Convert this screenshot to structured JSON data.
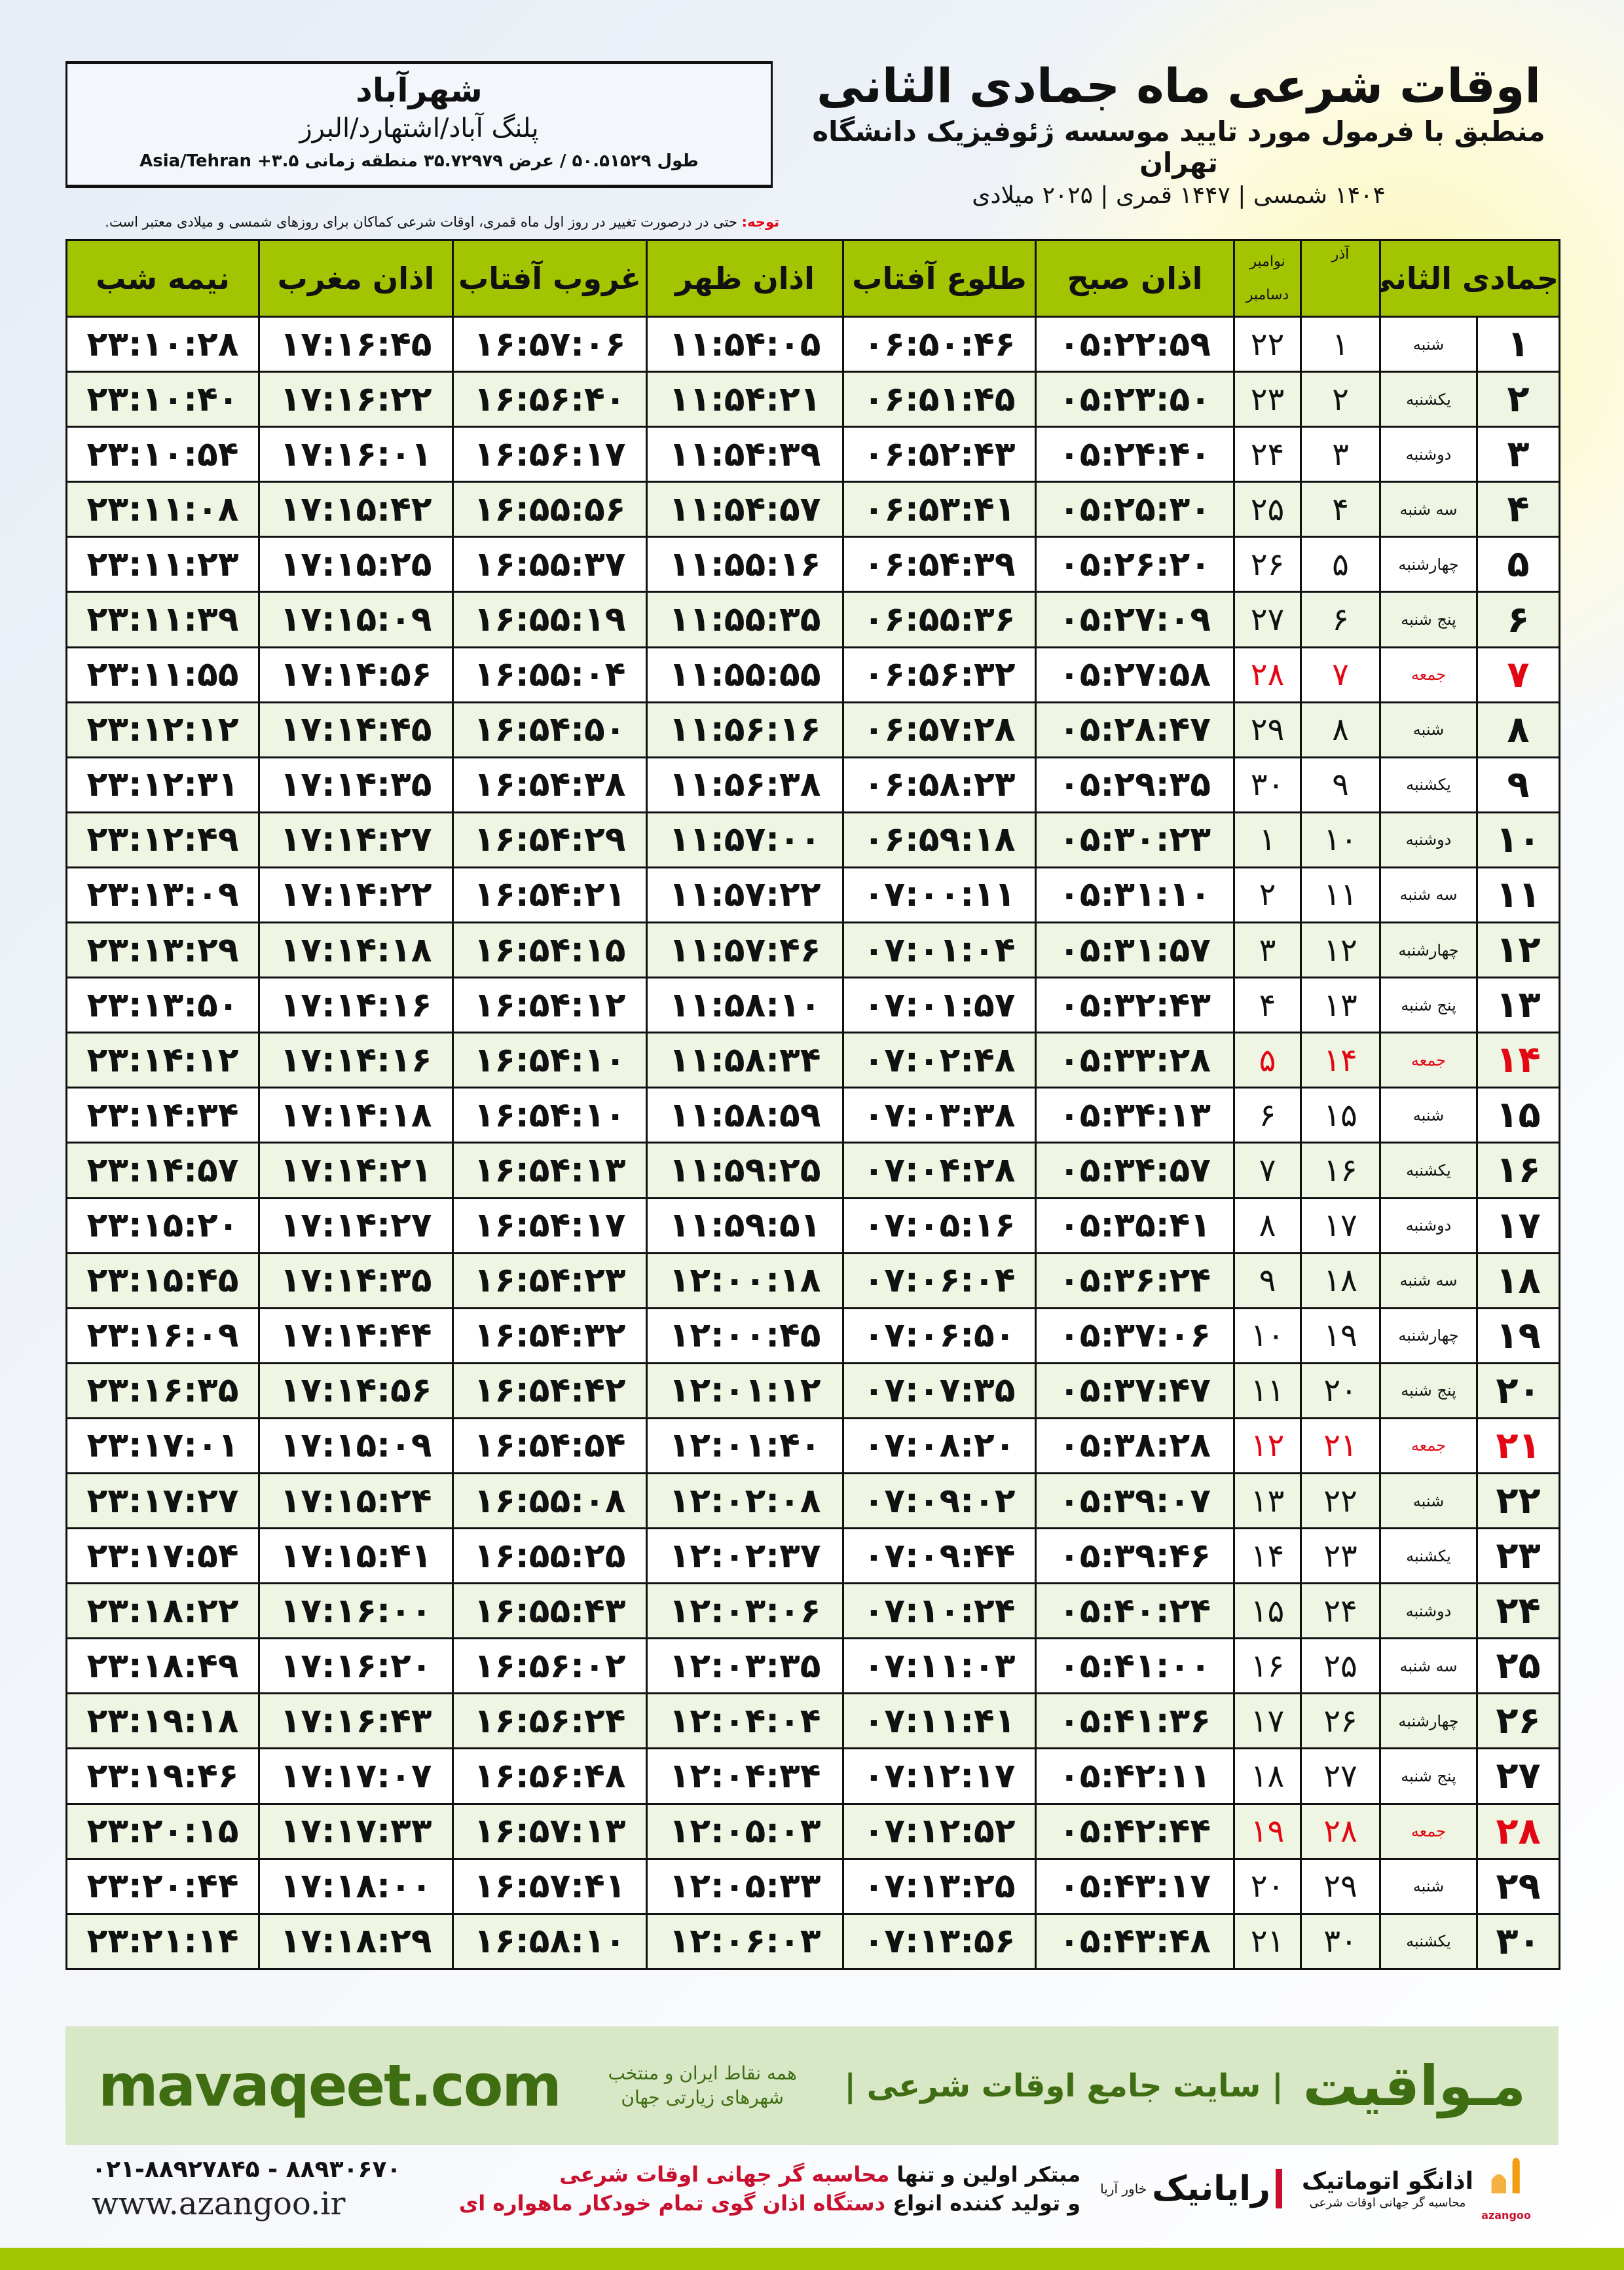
{
  "location": {
    "city": "شهرآباد",
    "region": "پلنگ آباد/اشتهارد/البرز",
    "coords": "طول ۵۰.۵۱۵۲۹ / عرض ۳۵.۷۲۹۷۹ منطقه زمانی ۳.۵+ Asia/Tehran"
  },
  "header": {
    "title": "اوقات شرعی ماه جمادی الثانی",
    "subtitle": "منطبق با فرمول مورد تایید موسسه ژئوفیزیک دانشگاه تهران",
    "dates": "۱۴۰۴ شمسی | ۱۴۴۷ قمری | ۲۰۲۵ میلادی"
  },
  "note": {
    "label": "توجه:",
    "text": " حتی در درصورت تغییر در روز اول ماه قمری، اوقات شرعی کماکان برای روزهای شمسی و میلادی معتبر است."
  },
  "table": {
    "columns": {
      "hijri": "جمادی الثانی",
      "azar": "آذر",
      "nov": "نوامبر",
      "dec": "دسامبر",
      "sobh": "اذان صبح",
      "tolu": "طلوع آفتاب",
      "zohr": "اذان ظهر",
      "ghorub": "غروب آفتاب",
      "maghreb": "اذان مغرب",
      "nime": "نیمه شب"
    },
    "rows": [
      [
        "۱",
        "شنبه",
        "۱",
        "۲۲",
        "۰۵:۲۲:۵۹",
        "۰۶:۵۰:۴۶",
        "۱۱:۵۴:۰۵",
        "۱۶:۵۷:۰۶",
        "۱۷:۱۶:۴۵",
        "۲۳:۱۰:۲۸"
      ],
      [
        "۲",
        "یکشنبه",
        "۲",
        "۲۳",
        "۰۵:۲۳:۵۰",
        "۰۶:۵۱:۴۵",
        "۱۱:۵۴:۲۱",
        "۱۶:۵۶:۴۰",
        "۱۷:۱۶:۲۲",
        "۲۳:۱۰:۴۰"
      ],
      [
        "۳",
        "دوشنبه",
        "۳",
        "۲۴",
        "۰۵:۲۴:۴۰",
        "۰۶:۵۲:۴۳",
        "۱۱:۵۴:۳۹",
        "۱۶:۵۶:۱۷",
        "۱۷:۱۶:۰۱",
        "۲۳:۱۰:۵۴"
      ],
      [
        "۴",
        "سه شنبه",
        "۴",
        "۲۵",
        "۰۵:۲۵:۳۰",
        "۰۶:۵۳:۴۱",
        "۱۱:۵۴:۵۷",
        "۱۶:۵۵:۵۶",
        "۱۷:۱۵:۴۲",
        "۲۳:۱۱:۰۸"
      ],
      [
        "۵",
        "چهارشنبه",
        "۵",
        "۲۶",
        "۰۵:۲۶:۲۰",
        "۰۶:۵۴:۳۹",
        "۱۱:۵۵:۱۶",
        "۱۶:۵۵:۳۷",
        "۱۷:۱۵:۲۵",
        "۲۳:۱۱:۲۳"
      ],
      [
        "۶",
        "پنج شنبه",
        "۶",
        "۲۷",
        "۰۵:۲۷:۰۹",
        "۰۶:۵۵:۳۶",
        "۱۱:۵۵:۳۵",
        "۱۶:۵۵:۱۹",
        "۱۷:۱۵:۰۹",
        "۲۳:۱۱:۳۹"
      ],
      [
        "۷",
        "جمعه",
        "۷",
        "۲۸",
        "۰۵:۲۷:۵۸",
        "۰۶:۵۶:۳۲",
        "۱۱:۵۵:۵۵",
        "۱۶:۵۵:۰۴",
        "۱۷:۱۴:۵۶",
        "۲۳:۱۱:۵۵"
      ],
      [
        "۸",
        "شنبه",
        "۸",
        "۲۹",
        "۰۵:۲۸:۴۷",
        "۰۶:۵۷:۲۸",
        "۱۱:۵۶:۱۶",
        "۱۶:۵۴:۵۰",
        "۱۷:۱۴:۴۵",
        "۲۳:۱۲:۱۲"
      ],
      [
        "۹",
        "یکشنبه",
        "۹",
        "۳۰",
        "۰۵:۲۹:۳۵",
        "۰۶:۵۸:۲۳",
        "۱۱:۵۶:۳۸",
        "۱۶:۵۴:۳۸",
        "۱۷:۱۴:۳۵",
        "۲۳:۱۲:۳۱"
      ],
      [
        "۱۰",
        "دوشنبه",
        "۱۰",
        "۱",
        "۰۵:۳۰:۲۳",
        "۰۶:۵۹:۱۸",
        "۱۱:۵۷:۰۰",
        "۱۶:۵۴:۲۹",
        "۱۷:۱۴:۲۷",
        "۲۳:۱۲:۴۹"
      ],
      [
        "۱۱",
        "سه شنبه",
        "۱۱",
        "۲",
        "۰۵:۳۱:۱۰",
        "۰۷:۰۰:۱۱",
        "۱۱:۵۷:۲۲",
        "۱۶:۵۴:۲۱",
        "۱۷:۱۴:۲۲",
        "۲۳:۱۳:۰۹"
      ],
      [
        "۱۲",
        "چهارشنبه",
        "۱۲",
        "۳",
        "۰۵:۳۱:۵۷",
        "۰۷:۰۱:۰۴",
        "۱۱:۵۷:۴۶",
        "۱۶:۵۴:۱۵",
        "۱۷:۱۴:۱۸",
        "۲۳:۱۳:۲۹"
      ],
      [
        "۱۳",
        "پنج شنبه",
        "۱۳",
        "۴",
        "۰۵:۳۲:۴۳",
        "۰۷:۰۱:۵۷",
        "۱۱:۵۸:۱۰",
        "۱۶:۵۴:۱۲",
        "۱۷:۱۴:۱۶",
        "۲۳:۱۳:۵۰"
      ],
      [
        "۱۴",
        "جمعه",
        "۱۴",
        "۵",
        "۰۵:۳۳:۲۸",
        "۰۷:۰۲:۴۸",
        "۱۱:۵۸:۳۴",
        "۱۶:۵۴:۱۰",
        "۱۷:۱۴:۱۶",
        "۲۳:۱۴:۱۲"
      ],
      [
        "۱۵",
        "شنبه",
        "۱۵",
        "۶",
        "۰۵:۳۴:۱۳",
        "۰۷:۰۳:۳۸",
        "۱۱:۵۸:۵۹",
        "۱۶:۵۴:۱۰",
        "۱۷:۱۴:۱۸",
        "۲۳:۱۴:۳۴"
      ],
      [
        "۱۶",
        "یکشنبه",
        "۱۶",
        "۷",
        "۰۵:۳۴:۵۷",
        "۰۷:۰۴:۲۸",
        "۱۱:۵۹:۲۵",
        "۱۶:۵۴:۱۳",
        "۱۷:۱۴:۲۱",
        "۲۳:۱۴:۵۷"
      ],
      [
        "۱۷",
        "دوشنبه",
        "۱۷",
        "۸",
        "۰۵:۳۵:۴۱",
        "۰۷:۰۵:۱۶",
        "۱۱:۵۹:۵۱",
        "۱۶:۵۴:۱۷",
        "۱۷:۱۴:۲۷",
        "۲۳:۱۵:۲۰"
      ],
      [
        "۱۸",
        "سه شنبه",
        "۱۸",
        "۹",
        "۰۵:۳۶:۲۴",
        "۰۷:۰۶:۰۴",
        "۱۲:۰۰:۱۸",
        "۱۶:۵۴:۲۳",
        "۱۷:۱۴:۳۵",
        "۲۳:۱۵:۴۵"
      ],
      [
        "۱۹",
        "چهارشنبه",
        "۱۹",
        "۱۰",
        "۰۵:۳۷:۰۶",
        "۰۷:۰۶:۵۰",
        "۱۲:۰۰:۴۵",
        "۱۶:۵۴:۳۲",
        "۱۷:۱۴:۴۴",
        "۲۳:۱۶:۰۹"
      ],
      [
        "۲۰",
        "پنج شنبه",
        "۲۰",
        "۱۱",
        "۰۵:۳۷:۴۷",
        "۰۷:۰۷:۳۵",
        "۱۲:۰۱:۱۲",
        "۱۶:۵۴:۴۲",
        "۱۷:۱۴:۵۶",
        "۲۳:۱۶:۳۵"
      ],
      [
        "۲۱",
        "جمعه",
        "۲۱",
        "۱۲",
        "۰۵:۳۸:۲۸",
        "۰۷:۰۸:۲۰",
        "۱۲:۰۱:۴۰",
        "۱۶:۵۴:۵۴",
        "۱۷:۱۵:۰۹",
        "۲۳:۱۷:۰۱"
      ],
      [
        "۲۲",
        "شنبه",
        "۲۲",
        "۱۳",
        "۰۵:۳۹:۰۷",
        "۰۷:۰۹:۰۲",
        "۱۲:۰۲:۰۸",
        "۱۶:۵۵:۰۸",
        "۱۷:۱۵:۲۴",
        "۲۳:۱۷:۲۷"
      ],
      [
        "۲۳",
        "یکشنبه",
        "۲۳",
        "۱۴",
        "۰۵:۳۹:۴۶",
        "۰۷:۰۹:۴۴",
        "۱۲:۰۲:۳۷",
        "۱۶:۵۵:۲۵",
        "۱۷:۱۵:۴۱",
        "۲۳:۱۷:۵۴"
      ],
      [
        "۲۴",
        "دوشنبه",
        "۲۴",
        "۱۵",
        "۰۵:۴۰:۲۴",
        "۰۷:۱۰:۲۴",
        "۱۲:۰۳:۰۶",
        "۱۶:۵۵:۴۳",
        "۱۷:۱۶:۰۰",
        "۲۳:۱۸:۲۲"
      ],
      [
        "۲۵",
        "سه شنبه",
        "۲۵",
        "۱۶",
        "۰۵:۴۱:۰۰",
        "۰۷:۱۱:۰۳",
        "۱۲:۰۳:۳۵",
        "۱۶:۵۶:۰۲",
        "۱۷:۱۶:۲۰",
        "۲۳:۱۸:۴۹"
      ],
      [
        "۲۶",
        "چهارشنبه",
        "۲۶",
        "۱۷",
        "۰۵:۴۱:۳۶",
        "۰۷:۱۱:۴۱",
        "۱۲:۰۴:۰۴",
        "۱۶:۵۶:۲۴",
        "۱۷:۱۶:۴۳",
        "۲۳:۱۹:۱۸"
      ],
      [
        "۲۷",
        "پنج شنبه",
        "۲۷",
        "۱۸",
        "۰۵:۴۲:۱۱",
        "۰۷:۱۲:۱۷",
        "۱۲:۰۴:۳۴",
        "۱۶:۵۶:۴۸",
        "۱۷:۱۷:۰۷",
        "۲۳:۱۹:۴۶"
      ],
      [
        "۲۸",
        "جمعه",
        "۲۸",
        "۱۹",
        "۰۵:۴۲:۴۴",
        "۰۷:۱۲:۵۲",
        "۱۲:۰۵:۰۳",
        "۱۶:۵۷:۱۳",
        "۱۷:۱۷:۳۳",
        "۲۳:۲۰:۱۵"
      ],
      [
        "۲۹",
        "شنبه",
        "۲۹",
        "۲۰",
        "۰۵:۴۳:۱۷",
        "۰۷:۱۳:۲۵",
        "۱۲:۰۵:۳۳",
        "۱۶:۵۷:۴۱",
        "۱۷:۱۸:۰۰",
        "۲۳:۲۰:۴۴"
      ],
      [
        "۳۰",
        "یکشنبه",
        "۳۰",
        "۲۱",
        "۰۵:۴۳:۴۸",
        "۰۷:۱۳:۵۶",
        "۱۲:۰۶:۰۳",
        "۱۶:۵۸:۱۰",
        "۱۷:۱۸:۲۹",
        "۲۳:۲۱:۱۴"
      ]
    ],
    "holiday_weekday": "جمعه"
  },
  "banner": {
    "brand": "مـواقیت",
    "tagline": "| سایت جامع اوقات شرعی |",
    "tagline_small": "همه نقاط ایران و منتخب شهرهای زیارتی جهان",
    "site": "mavaqeet.com"
  },
  "footer": {
    "phone": "۰۲۱-۸۸۹۲۷۸۴۵ - ۸۸۹۳۰۶۷۰",
    "web": "www.azangoo.ir",
    "adv_line1_a": "مبتکر اولین و تنها ",
    "adv_line1_b": "محاسبه گر جهانی اوقات شرعی",
    "adv_line2_a": "و تولید کننده انواع ",
    "adv_line2_b": "دستگاه اذان گوی تمام خودکار ماهواره ای",
    "logo1": "رایانیک",
    "logo1_sub": "خاور آریا",
    "logo2": "اذانگو اتوماتیک",
    "logo2_sub": "محاسبه گر جهانی اوقات شرعی",
    "logo2_latin": "azangoo"
  },
  "colors": {
    "header_green": "#a3c400",
    "friday_red": "#e30613",
    "banner_bg": "#d8e7c6",
    "brand_green": "#3f6d12"
  }
}
